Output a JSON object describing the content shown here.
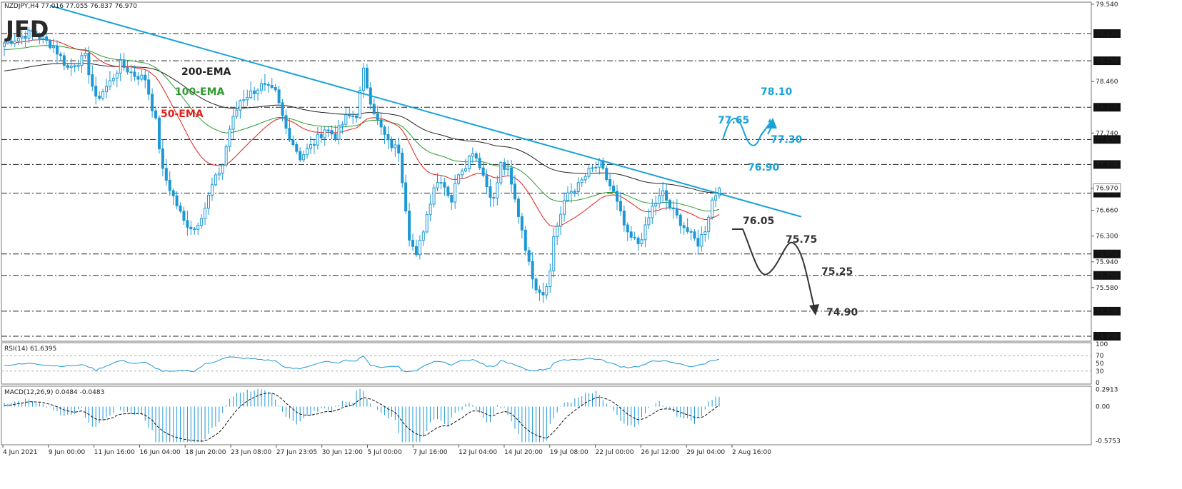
{
  "chart_data": {
    "type": "candlestick",
    "instrument_header": "NZDJPY,H4  77.016 77.055 76.837 76.970",
    "logo": "JFD",
    "colors": {
      "candle": "#1d98d4",
      "trendline": "#1aa2d8",
      "ema200": "#222222",
      "ema100": "#2f9a2f",
      "ema50": "#e0201a",
      "bull_path": "#1aa2d8",
      "bear_path": "#333333",
      "level_line": "#222222"
    },
    "price_axis": {
      "ylim": [
        74.84,
        79.55
      ],
      "ticks": [
        "79.540",
        "79.130",
        "78.750",
        "78.460",
        "78.100",
        "77.740",
        "77.650",
        "77.300",
        "76.970",
        "76.900",
        "76.660",
        "76.300",
        "76.050",
        "75.940",
        "75.750",
        "75.580",
        "75.250",
        "74.900"
      ]
    },
    "horizontal_levels": [
      {
        "price": 79.13,
        "label": "79.130"
      },
      {
        "price": 78.75,
        "label": "78.750"
      },
      {
        "price": 78.1,
        "label": "78.100"
      },
      {
        "price": 77.65,
        "label": "77.650"
      },
      {
        "price": 77.3,
        "label": "77.300"
      },
      {
        "price": 76.9,
        "label": "76.900"
      },
      {
        "price": 76.05,
        "label": "76.050"
      },
      {
        "price": 75.75,
        "label": "75.750"
      },
      {
        "price": 75.25,
        "label": "75.250"
      },
      {
        "price": 74.9,
        "label": "74.900"
      }
    ],
    "current_price": {
      "price": 76.97,
      "label": "76.970"
    },
    "ema_labels": [
      {
        "text": "200-EMA",
        "color": "#222222"
      },
      {
        "text": "100-EMA",
        "color": "#2f9a2f"
      },
      {
        "text": "50-EMA",
        "color": "#e0201a"
      }
    ],
    "scenario_labels": {
      "up": [
        "77.65",
        "78.10",
        "77.30",
        "76.90"
      ],
      "down": [
        "76.05",
        "75.75",
        "75.25",
        "74.90"
      ]
    },
    "x_labels": [
      "4 Jun 2021",
      "9 Jun 00:00",
      "11 Jun 16:00",
      "16 Jun 04:00",
      "18 Jun 20:00",
      "23 Jun 08:00",
      "27 Jun 23:05",
      "30 Jun 12:00",
      "5 Jul 00:00",
      "7 Jul 16:00",
      "12 Jul 04:00",
      "14 Jul 20:00",
      "19 Jul 08:00",
      "22 Jul 00:00",
      "26 Jul 12:00",
      "29 Jul 04:00",
      "2 Aug 16:00"
    ],
    "price_keypoints": [
      [
        0,
        79.0
      ],
      [
        8,
        79.15
      ],
      [
        14,
        78.95
      ],
      [
        18,
        78.65
      ],
      [
        23,
        78.8
      ],
      [
        26,
        78.2
      ],
      [
        30,
        78.45
      ],
      [
        33,
        78.7
      ],
      [
        37,
        78.55
      ],
      [
        40,
        78.5
      ],
      [
        43,
        77.9
      ],
      [
        45,
        77.2
      ],
      [
        48,
        76.85
      ],
      [
        51,
        76.5
      ],
      [
        54,
        76.4
      ],
      [
        57,
        76.7
      ],
      [
        59,
        77.0
      ],
      [
        62,
        77.3
      ],
      [
        64,
        77.8
      ],
      [
        67,
        78.2
      ],
      [
        70,
        78.3
      ],
      [
        73,
        78.4
      ],
      [
        77,
        78.3
      ],
      [
        80,
        77.8
      ],
      [
        84,
        77.4
      ],
      [
        88,
        77.6
      ],
      [
        91,
        77.8
      ],
      [
        94,
        77.7
      ],
      [
        97,
        77.95
      ],
      [
        100,
        78.0
      ],
      [
        102,
        78.6
      ],
      [
        104,
        78.2
      ],
      [
        106,
        77.9
      ],
      [
        109,
        77.6
      ],
      [
        112,
        77.5
      ],
      [
        113,
        77.1
      ],
      [
        115,
        76.3
      ],
      [
        117,
        76.0
      ],
      [
        119,
        76.4
      ],
      [
        122,
        77.0
      ],
      [
        124,
        77.1
      ],
      [
        127,
        76.8
      ],
      [
        129,
        77.2
      ],
      [
        131,
        77.3
      ],
      [
        133,
        77.5
      ],
      [
        135,
        77.3
      ],
      [
        137,
        77.0
      ],
      [
        139,
        76.8
      ],
      [
        141,
        77.3
      ],
      [
        143,
        77.2
      ],
      [
        145,
        76.8
      ],
      [
        147,
        76.4
      ],
      [
        149,
        75.9
      ],
      [
        151,
        75.6
      ],
      [
        153,
        75.5
      ],
      [
        155,
        75.8
      ],
      [
        156,
        76.3
      ],
      [
        158,
        76.6
      ],
      [
        160,
        76.9
      ],
      [
        163,
        77.0
      ],
      [
        166,
        77.2
      ],
      [
        169,
        77.3
      ],
      [
        171,
        77.1
      ],
      [
        173,
        76.9
      ],
      [
        175,
        76.6
      ],
      [
        177,
        76.3
      ],
      [
        180,
        76.2
      ],
      [
        182,
        76.4
      ],
      [
        184,
        76.7
      ],
      [
        187,
        76.9
      ],
      [
        189,
        76.7
      ],
      [
        192,
        76.5
      ],
      [
        195,
        76.3
      ],
      [
        197,
        76.2
      ],
      [
        199,
        76.4
      ],
      [
        201,
        76.8
      ],
      [
        203,
        76.97
      ]
    ],
    "rsi": {
      "header": "RSI(14) 61.6395",
      "ylim": [
        0,
        100
      ],
      "ticks": [
        100,
        70,
        50,
        30,
        0
      ],
      "levels": [
        70,
        30
      ],
      "keypoints": [
        [
          0,
          45
        ],
        [
          8,
          50
        ],
        [
          14,
          44
        ],
        [
          18,
          43
        ],
        [
          23,
          46
        ],
        [
          26,
          32
        ],
        [
          30,
          48
        ],
        [
          33,
          57
        ],
        [
          37,
          50
        ],
        [
          40,
          52
        ],
        [
          43,
          38
        ],
        [
          45,
          30
        ],
        [
          48,
          28
        ],
        [
          51,
          32
        ],
        [
          54,
          30
        ],
        [
          57,
          48
        ],
        [
          59,
          52
        ],
        [
          62,
          63
        ],
        [
          64,
          66
        ],
        [
          67,
          64
        ],
        [
          70,
          62
        ],
        [
          73,
          60
        ],
        [
          77,
          56
        ],
        [
          80,
          38
        ],
        [
          84,
          36
        ],
        [
          88,
          48
        ],
        [
          91,
          55
        ],
        [
          94,
          50
        ],
        [
          97,
          57
        ],
        [
          100,
          58
        ],
        [
          102,
          70
        ],
        [
          104,
          45
        ],
        [
          106,
          40
        ],
        [
          109,
          42
        ],
        [
          112,
          42
        ],
        [
          113,
          32
        ],
        [
          115,
          28
        ],
        [
          117,
          32
        ],
        [
          119,
          42
        ],
        [
          122,
          56
        ],
        [
          124,
          55
        ],
        [
          127,
          47
        ],
        [
          129,
          56
        ],
        [
          131,
          57
        ],
        [
          133,
          60
        ],
        [
          135,
          52
        ],
        [
          137,
          42
        ],
        [
          139,
          40
        ],
        [
          141,
          57
        ],
        [
          143,
          52
        ],
        [
          145,
          45
        ],
        [
          147,
          38
        ],
        [
          149,
          32
        ],
        [
          151,
          32
        ],
        [
          153,
          34
        ],
        [
          155,
          38
        ],
        [
          156,
          52
        ],
        [
          158,
          56
        ],
        [
          160,
          60
        ],
        [
          163,
          60
        ],
        [
          166,
          63
        ],
        [
          169,
          60
        ],
        [
          171,
          54
        ],
        [
          173,
          48
        ],
        [
          175,
          42
        ],
        [
          177,
          40
        ],
        [
          180,
          42
        ],
        [
          182,
          47
        ],
        [
          184,
          55
        ],
        [
          187,
          58
        ],
        [
          189,
          52
        ],
        [
          192,
          48
        ],
        [
          195,
          42
        ],
        [
          197,
          44
        ],
        [
          199,
          50
        ],
        [
          201,
          58
        ],
        [
          203,
          62
        ]
      ]
    },
    "macd": {
      "header": "MACD(12,26,9) 0.0484 -0.0483",
      "ticks": [
        0.2913,
        0.0,
        -0.5753
      ],
      "tick_labels": [
        "0.2913",
        "0.00",
        "-0.5753"
      ],
      "ylim": [
        -0.62,
        0.32
      ]
    }
  }
}
